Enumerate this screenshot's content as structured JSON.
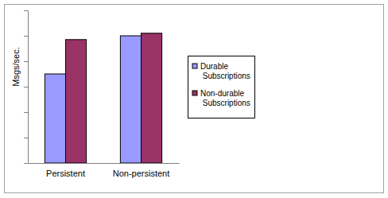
{
  "chart_data": {
    "type": "bar",
    "y_label": "Msgs/sec.",
    "categories": [
      "Persistent",
      "Non-persistent"
    ],
    "series": [
      {
        "name": "Durable Subscriptions",
        "color": "#9999ff",
        "values": [
          3.5,
          5.0
        ]
      },
      {
        "name": "Non-durable Subscriptions",
        "color": "#993366",
        "values": [
          4.85,
          5.1
        ]
      }
    ],
    "ylim": [
      0,
      6
    ],
    "yticks": [
      0,
      1,
      2,
      3,
      4,
      5,
      6
    ],
    "grid": false,
    "legend": "right",
    "tick_labels": "x"
  }
}
